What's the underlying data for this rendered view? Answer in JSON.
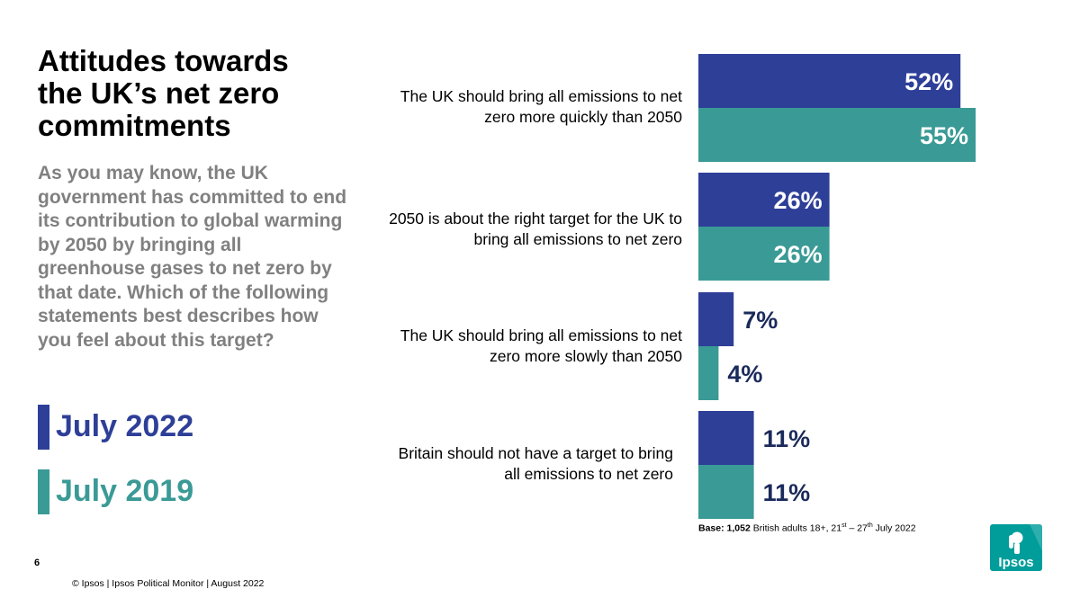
{
  "title": "Attitudes towards the UK’s net zero commitments",
  "question": "As you may know, the UK government has committed to end its contribution to global warming by 2050 by bringing all greenhouse gases to net zero by that date. Which of the following statements best describes how you feel about this target?",
  "legend": [
    {
      "label": "July 2022",
      "color": "#2E3F98"
    },
    {
      "label": "July 2019",
      "color": "#3A9A96"
    }
  ],
  "chart_data": {
    "type": "bar",
    "orientation": "horizontal",
    "categories": [
      "The UK should bring all emissions to net zero more quickly than 2050",
      "2050 is about the right target for the UK to bring all emissions to net zero",
      "The UK should bring all emissions to net zero more slowly than 2050",
      "Britain should not have a target to bring all emissions to net zero"
    ],
    "series": [
      {
        "name": "July 2022",
        "color": "#2E3F98",
        "values": [
          52,
          26,
          7,
          11
        ],
        "labels": [
          "52%",
          "26%",
          "7%",
          "11%"
        ]
      },
      {
        "name": "July 2019",
        "color": "#3A9A96",
        "values": [
          55,
          26,
          4,
          11
        ],
        "labels": [
          "55%",
          "26%",
          "4%",
          "11%"
        ]
      }
    ],
    "xlim": [
      0,
      55
    ]
  },
  "base": {
    "prefix": "Base:",
    "count": "1,052",
    "text": "British adults 18+, 21",
    "sup1": "st",
    "mid": " – 27",
    "sup2": "th",
    "end": "  July 2022"
  },
  "page_number": "6",
  "footer": "© Ipsos | Ipsos  Political Monitor | August 2022",
  "logo": {
    "text": "Ipsos",
    "color": "#009D9A"
  },
  "colors": {
    "label_inside": "#ffffff",
    "label_outside": "#1A2A5A",
    "title": "#000000",
    "question": "#808080"
  }
}
